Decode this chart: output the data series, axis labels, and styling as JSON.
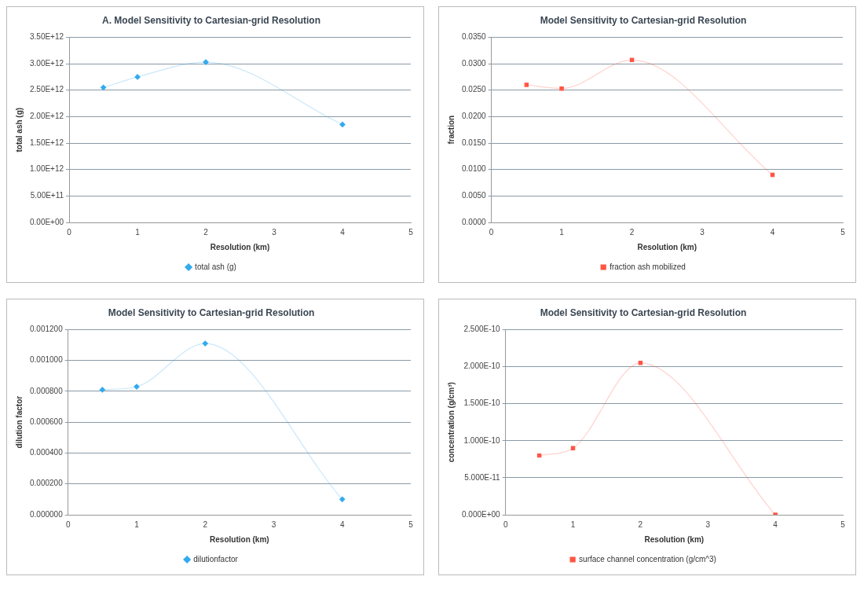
{
  "chart_data": [
    {
      "type": "line",
      "title": "A. Model Sensitivity to Cartesian-grid Resolution",
      "xlabel": "Resolution (km)",
      "ylabel": "total ash (g)",
      "x": [
        0.5,
        1,
        2,
        4
      ],
      "series": [
        {
          "name": "total ash (g)",
          "color": "#33aaee",
          "values": [
            2550000000000.0,
            2750000000000.0,
            3030000000000.0,
            1850000000000.0
          ]
        }
      ],
      "xlim": [
        0,
        5
      ],
      "xticks": [
        0,
        1,
        2,
        3,
        4,
        5
      ],
      "ylim": [
        0,
        3500000000000.0
      ],
      "yticks": [
        {
          "value": 0,
          "label": "0.00E+00"
        },
        {
          "value": 500000000000.0,
          "label": "5.00E+11"
        },
        {
          "value": 1000000000000.0,
          "label": "1.00E+12"
        },
        {
          "value": 1500000000000.0,
          "label": "1.50E+12"
        },
        {
          "value": 2000000000000.0,
          "label": "2.00E+12"
        },
        {
          "value": 2500000000000.0,
          "label": "2.50E+12"
        },
        {
          "value": 3000000000000.0,
          "label": "3.00E+12"
        },
        {
          "value": 3500000000000.0,
          "label": "3.50E+12"
        }
      ],
      "grid": "y",
      "legend": "bottom",
      "marker": "diamond"
    },
    {
      "type": "line",
      "title": "Model Sensitivity to Cartesian-grid Resolution",
      "xlabel": "Resolution (km)",
      "ylabel": "fraction",
      "x": [
        0.5,
        1,
        2,
        4
      ],
      "series": [
        {
          "name": "fraction ash mobilized",
          "color": "#ff5544",
          "values": [
            0.026,
            0.0253,
            0.0307,
            0.009
          ]
        }
      ],
      "xlim": [
        0,
        5
      ],
      "xticks": [
        0,
        1,
        2,
        3,
        4,
        5
      ],
      "ylim": [
        0,
        0.035
      ],
      "yticks": [
        {
          "value": 0,
          "label": "0.0000"
        },
        {
          "value": 0.005,
          "label": "0.0050"
        },
        {
          "value": 0.01,
          "label": "0.0100"
        },
        {
          "value": 0.015,
          "label": "0.0150"
        },
        {
          "value": 0.02,
          "label": "0.0200"
        },
        {
          "value": 0.025,
          "label": "0.0250"
        },
        {
          "value": 0.03,
          "label": "0.0300"
        },
        {
          "value": 0.035,
          "label": "0.0350"
        }
      ],
      "grid": "y",
      "legend": "bottom",
      "marker": "square"
    },
    {
      "type": "line",
      "title": "Model Sensitivity to Cartesian-grid Resolution",
      "xlabel": "Resolution (km)",
      "ylabel": "dilution factor",
      "x": [
        0.5,
        1,
        2,
        4
      ],
      "series": [
        {
          "name": "dilutionfactor",
          "color": "#33aaee",
          "values": [
            0.00081,
            0.00083,
            0.00111,
            0.0001
          ]
        }
      ],
      "xlim": [
        0,
        5
      ],
      "xticks": [
        0,
        1,
        2,
        3,
        4,
        5
      ],
      "ylim": [
        0,
        0.0012
      ],
      "yticks": [
        {
          "value": 0,
          "label": "0.000000"
        },
        {
          "value": 0.0002,
          "label": "0.000200"
        },
        {
          "value": 0.0004,
          "label": "0.000400"
        },
        {
          "value": 0.0006,
          "label": "0.000600"
        },
        {
          "value": 0.0008,
          "label": "0.000800"
        },
        {
          "value": 0.001,
          "label": "0.001000"
        },
        {
          "value": 0.0012,
          "label": "0.001200"
        }
      ],
      "grid": "y",
      "legend": "bottom",
      "marker": "diamond"
    },
    {
      "type": "line",
      "title": "Model Sensitivity to Cartesian-grid Resolution",
      "xlabel": "Resolution (km)",
      "ylabel": "concentration (g/cm³)",
      "x": [
        0.5,
        1,
        2,
        4
      ],
      "series": [
        {
          "name": "surface channel concentration (g/cm^3)",
          "color": "#ff5544",
          "values": [
            8e-11,
            9e-11,
            2.05e-10,
            0
          ]
        }
      ],
      "xlim": [
        0,
        5
      ],
      "xticks": [
        0,
        1,
        2,
        3,
        4,
        5
      ],
      "ylim": [
        0,
        2.5e-10
      ],
      "yticks": [
        {
          "value": 0,
          "label": "0.000E+00"
        },
        {
          "value": 5e-11,
          "label": "5.000E-11"
        },
        {
          "value": 1e-10,
          "label": "1.000E-10"
        },
        {
          "value": 1.5e-10,
          "label": "1.500E-10"
        },
        {
          "value": 2e-10,
          "label": "2.000E-10"
        },
        {
          "value": 2.5e-10,
          "label": "2.500E-10"
        }
      ],
      "grid": "y",
      "legend": "bottom",
      "marker": "square"
    }
  ]
}
